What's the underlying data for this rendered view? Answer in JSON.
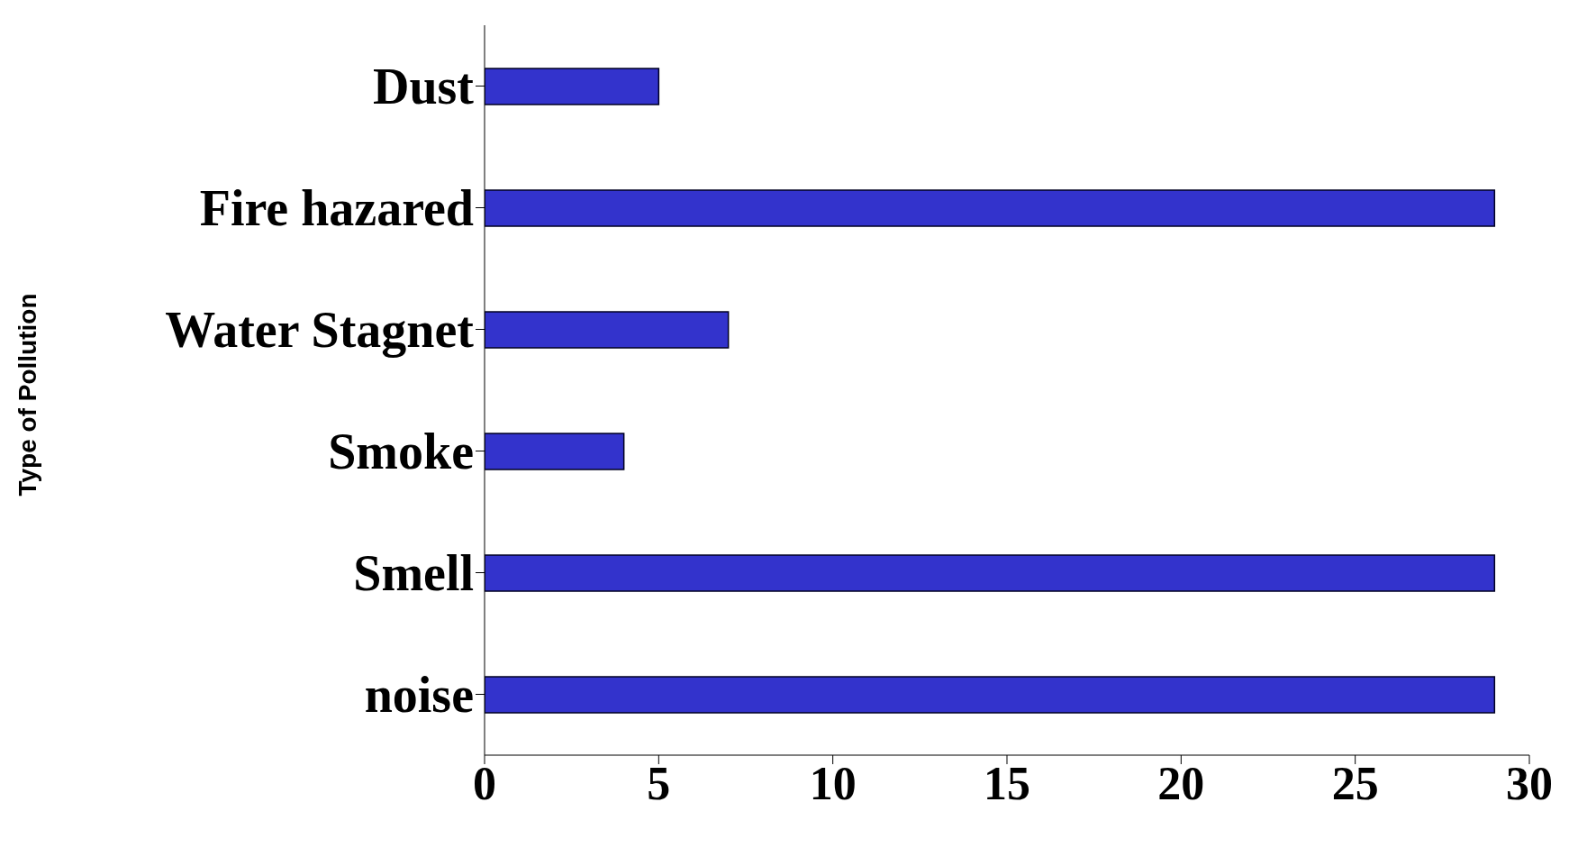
{
  "chart_data": {
    "type": "bar",
    "orientation": "horizontal",
    "ylabel": "Type of Pollution",
    "categories": [
      "Dust",
      "Fire hazared",
      "Water Stagnet",
      "Smoke",
      "Smell",
      "noise"
    ],
    "values": [
      5,
      29,
      7,
      4,
      29,
      29
    ],
    "color": "#3333cc",
    "xlim": [
      0,
      30
    ],
    "xticks": [
      0,
      5,
      10,
      15,
      20,
      25,
      30
    ],
    "grid": false
  }
}
